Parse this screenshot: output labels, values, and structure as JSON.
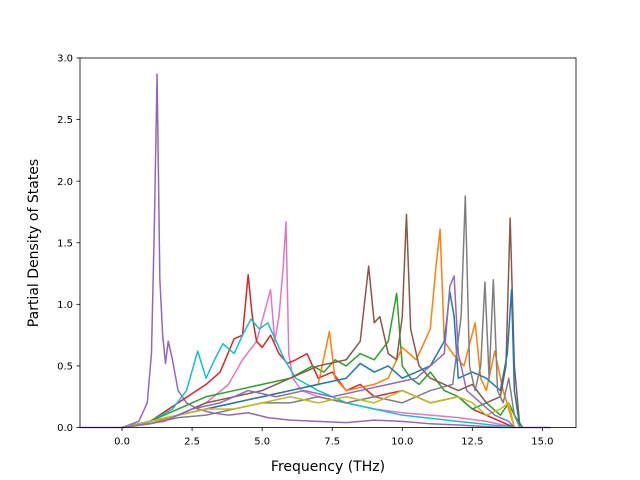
{
  "chart_data": {
    "type": "line",
    "title": "",
    "xlabel": "Frequency (THz)",
    "ylabel": "Partial Density of States",
    "xlim": [
      -1.5,
      16.2
    ],
    "ylim": [
      0.0,
      3.0
    ],
    "xticks": [
      0.0,
      2.5,
      5.0,
      7.5,
      10.0,
      12.5,
      15.0
    ],
    "xtick_labels": [
      "0.0",
      "2.5",
      "5.0",
      "7.5",
      "10.0",
      "12.5",
      "15.0"
    ],
    "yticks": [
      0.0,
      0.5,
      1.0,
      1.5,
      2.0,
      2.5,
      3.0
    ],
    "ytick_labels": [
      "0.0",
      "0.5",
      "1.0",
      "1.5",
      "2.0",
      "2.5",
      "3.0"
    ],
    "grid": false,
    "legend": "none",
    "colors": [
      "#1f77b4",
      "#ff7f0e",
      "#2ca02c",
      "#d62728",
      "#9467bd",
      "#8c564b",
      "#e377c2",
      "#7f7f7f",
      "#bcbd22",
      "#17becf"
    ],
    "series": [
      {
        "color": "#9467bd",
        "x": [
          -1.5,
          0.0,
          0.6,
          0.9,
          1.05,
          1.15,
          1.25,
          1.35,
          1.45,
          1.55,
          1.65,
          1.8,
          2.0,
          2.3,
          2.7,
          3.2,
          3.8,
          4.5,
          5.2,
          6.0,
          7.0,
          8.0,
          9.0,
          10.0,
          11.0,
          12.0,
          12.8,
          13.5,
          14.0,
          15.3
        ],
        "y": [
          0.0,
          0.0,
          0.05,
          0.2,
          0.6,
          1.6,
          2.87,
          1.2,
          0.75,
          0.52,
          0.7,
          0.55,
          0.3,
          0.2,
          0.15,
          0.12,
          0.1,
          0.12,
          0.08,
          0.06,
          0.05,
          0.04,
          0.06,
          0.05,
          0.03,
          0.02,
          0.01,
          0.0,
          0.0,
          0.0
        ]
      },
      {
        "color": "#e377c2",
        "x": [
          0.0,
          1.0,
          2.0,
          3.0,
          3.8,
          4.3,
          4.8,
          5.1,
          5.3,
          5.45,
          5.6,
          5.75,
          5.85,
          5.95,
          6.1,
          6.4,
          7.0,
          8.0,
          9.0,
          10.0,
          11.0,
          12.0,
          13.0,
          14.0
        ],
        "y": [
          0.0,
          0.05,
          0.1,
          0.2,
          0.35,
          0.55,
          0.7,
          0.95,
          1.12,
          0.7,
          0.9,
          1.3,
          1.67,
          0.6,
          0.4,
          0.3,
          0.25,
          0.2,
          0.15,
          0.12,
          0.1,
          0.08,
          0.05,
          0.0
        ]
      },
      {
        "color": "#d62728",
        "x": [
          0.0,
          1.0,
          2.0,
          3.0,
          3.5,
          4.0,
          4.3,
          4.5,
          4.65,
          4.8,
          5.0,
          5.3,
          5.6,
          5.9,
          6.2,
          6.6,
          7.0,
          7.5,
          8.0,
          8.5,
          9.0,
          10.0,
          11.0,
          12.0,
          12.5,
          13.0,
          14.0
        ],
        "y": [
          0.0,
          0.05,
          0.2,
          0.35,
          0.45,
          0.72,
          0.75,
          1.24,
          0.9,
          0.7,
          0.65,
          0.75,
          0.6,
          0.52,
          0.55,
          0.6,
          0.4,
          0.45,
          0.3,
          0.35,
          0.25,
          0.3,
          0.2,
          0.25,
          0.15,
          0.1,
          0.0
        ]
      },
      {
        "color": "#17becf",
        "x": [
          0.0,
          1.0,
          1.8,
          2.3,
          2.7,
          3.0,
          3.3,
          3.6,
          4.0,
          4.3,
          4.6,
          4.9,
          5.2,
          5.5,
          5.8,
          6.2,
          7.0,
          8.0,
          9.0,
          10.0,
          12.0,
          14.0
        ],
        "y": [
          0.0,
          0.05,
          0.15,
          0.3,
          0.62,
          0.4,
          0.55,
          0.68,
          0.6,
          0.75,
          0.88,
          0.8,
          0.85,
          0.7,
          0.55,
          0.4,
          0.3,
          0.2,
          0.15,
          0.1,
          0.05,
          0.0
        ]
      },
      {
        "color": "#2ca02c",
        "x": [
          0.0,
          1.0,
          2.0,
          3.0,
          4.0,
          5.0,
          6.0,
          6.8,
          7.2,
          7.6,
          8.0,
          8.5,
          9.0,
          9.5,
          9.8,
          10.0,
          10.3,
          10.6,
          11.0,
          11.5,
          12.0,
          12.5,
          13.0,
          13.5,
          13.8,
          14.0,
          14.3
        ],
        "y": [
          0.0,
          0.05,
          0.15,
          0.25,
          0.3,
          0.35,
          0.4,
          0.5,
          0.45,
          0.55,
          0.5,
          0.6,
          0.55,
          0.7,
          1.09,
          0.5,
          0.4,
          0.35,
          0.45,
          0.3,
          0.25,
          0.15,
          0.2,
          0.1,
          0.2,
          0.1,
          0.0
        ]
      },
      {
        "color": "#ff7f0e",
        "x": [
          0.0,
          1.0,
          2.0,
          3.0,
          4.0,
          5.0,
          6.0,
          7.0,
          7.4,
          7.6,
          8.0,
          9.0,
          9.5,
          10.0,
          10.5,
          11.0,
          11.2,
          11.35,
          11.5,
          11.8,
          12.2,
          12.6,
          12.8,
          13.0,
          13.3,
          13.6,
          14.0
        ],
        "y": [
          0.0,
          0.03,
          0.1,
          0.15,
          0.2,
          0.25,
          0.3,
          0.35,
          0.78,
          0.4,
          0.3,
          0.35,
          0.4,
          0.65,
          0.55,
          0.8,
          1.3,
          1.61,
          0.7,
          0.6,
          0.5,
          0.85,
          0.4,
          0.3,
          0.62,
          0.3,
          0.0
        ]
      },
      {
        "color": "#8c564b",
        "x": [
          0.0,
          1.0,
          2.0,
          3.0,
          4.0,
          5.0,
          6.0,
          7.0,
          8.0,
          8.5,
          8.8,
          9.0,
          9.2,
          9.5,
          9.8,
          10.0,
          10.15,
          10.3,
          10.6,
          11.0,
          12.0,
          12.5,
          13.0,
          13.5,
          13.7,
          13.85,
          14.0,
          14.2
        ],
        "y": [
          0.0,
          0.05,
          0.1,
          0.2,
          0.25,
          0.3,
          0.4,
          0.5,
          0.55,
          0.7,
          1.31,
          0.85,
          0.9,
          0.6,
          0.55,
          0.9,
          1.73,
          0.8,
          0.5,
          0.4,
          0.3,
          0.35,
          0.2,
          0.25,
          0.5,
          1.7,
          0.5,
          0.0
        ]
      },
      {
        "color": "#1f77b4",
        "x": [
          0.0,
          1.0,
          2.0,
          3.0,
          4.0,
          5.0,
          6.0,
          7.0,
          8.0,
          8.5,
          9.0,
          9.5,
          10.0,
          10.5,
          11.0,
          11.5,
          11.7,
          11.85,
          12.0,
          12.5,
          13.0,
          13.5,
          13.75,
          13.9,
          14.0,
          14.2
        ],
        "y": [
          0.0,
          0.05,
          0.1,
          0.15,
          0.2,
          0.25,
          0.3,
          0.35,
          0.4,
          0.52,
          0.45,
          0.5,
          0.4,
          0.45,
          0.5,
          0.7,
          1.1,
          0.9,
          0.4,
          0.45,
          0.4,
          0.3,
          0.6,
          1.12,
          0.3,
          0.0
        ]
      },
      {
        "color": "#7f7f7f",
        "x": [
          0.0,
          1.0,
          2.0,
          3.0,
          4.0,
          5.0,
          6.0,
          7.0,
          8.0,
          9.0,
          10.0,
          11.0,
          11.8,
          12.1,
          12.25,
          12.4,
          12.6,
          12.8,
          12.95,
          13.1,
          13.25,
          13.4,
          13.6,
          13.8,
          14.0,
          14.2
        ],
        "y": [
          0.0,
          0.03,
          0.08,
          0.1,
          0.15,
          0.2,
          0.2,
          0.25,
          0.2,
          0.25,
          0.2,
          0.3,
          0.35,
          0.9,
          1.88,
          0.5,
          0.3,
          0.5,
          1.18,
          0.4,
          1.2,
          0.3,
          0.2,
          0.4,
          0.1,
          0.0
        ]
      },
      {
        "color": "#bcbd22",
        "x": [
          0.0,
          1.0,
          2.0,
          3.0,
          4.0,
          5.0,
          6.0,
          7.0,
          8.0,
          9.0,
          10.0,
          11.0,
          12.0,
          12.5,
          13.0,
          13.5,
          13.8,
          14.0
        ],
        "y": [
          0.0,
          0.05,
          0.1,
          0.15,
          0.15,
          0.2,
          0.25,
          0.2,
          0.25,
          0.2,
          0.3,
          0.2,
          0.25,
          0.2,
          0.1,
          0.15,
          0.2,
          0.0
        ]
      },
      {
        "color": "#9467bd",
        "x": [
          0.0,
          1.5,
          2.5,
          3.5,
          4.5,
          5.5,
          6.5,
          7.5,
          8.5,
          9.5,
          10.5,
          11.0,
          11.5,
          11.7,
          11.85,
          12.0,
          12.3,
          12.8,
          13.3,
          13.8,
          14.0
        ],
        "y": [
          0.0,
          0.05,
          0.15,
          0.2,
          0.3,
          0.25,
          0.3,
          0.25,
          0.3,
          0.35,
          0.4,
          0.5,
          0.6,
          1.15,
          1.23,
          0.6,
          0.3,
          0.2,
          0.1,
          0.05,
          0.0
        ]
      }
    ]
  }
}
